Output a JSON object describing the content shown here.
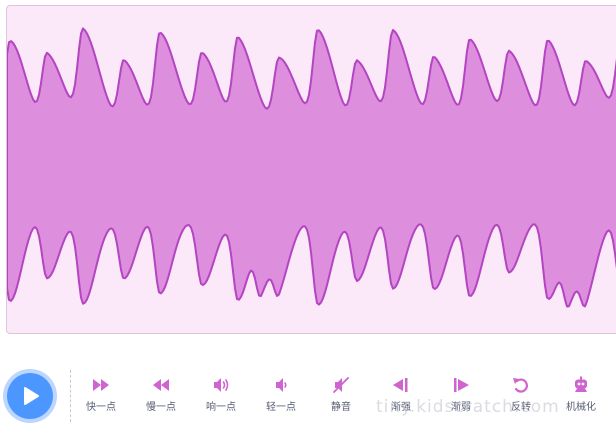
{
  "colors": {
    "panel_bg": "#fbe8f8",
    "wave_fill": "#dd8fde",
    "wave_stroke": "#b444c2",
    "accent": "#4c97ff",
    "icon": "#cf63cf"
  },
  "play": {
    "icon": "play-icon"
  },
  "tools": [
    {
      "label": "快一点",
      "icon": "faster-icon"
    },
    {
      "label": "慢一点",
      "icon": "slower-icon"
    },
    {
      "label": "响一点",
      "icon": "louder-icon"
    },
    {
      "label": "轻一点",
      "icon": "softer-icon"
    },
    {
      "label": "静音",
      "icon": "mute-icon"
    },
    {
      "label": "渐强",
      "icon": "fade-in-icon"
    },
    {
      "label": "渐弱",
      "icon": "fade-out-icon"
    },
    {
      "label": "反转",
      "icon": "reverse-icon"
    },
    {
      "label": "机械化",
      "icon": "robot-icon"
    }
  ],
  "watermark": "tiny.kidscratch.com"
}
